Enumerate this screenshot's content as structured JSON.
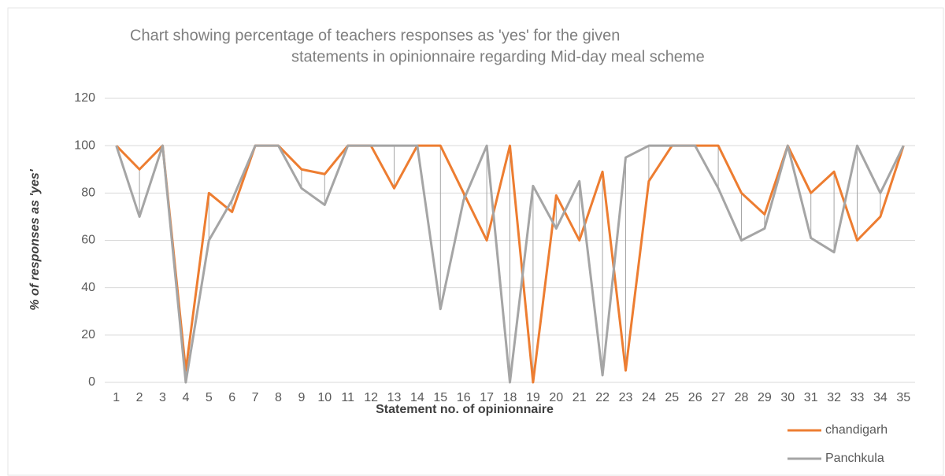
{
  "chart_data": {
    "type": "line",
    "title": [
      "Chart showing percentage of teachers responses as 'yes' for the given",
      "statements in opinionnaire regarding Mid-day meal scheme"
    ],
    "x_label": "Statement no. of opinionnaire",
    "y_label": "% of responses as 'yes'",
    "categories": [
      "1",
      "2",
      "3",
      "4",
      "5",
      "6",
      "7",
      "8",
      "9",
      "10",
      "11",
      "12",
      "13",
      "14",
      "15",
      "16",
      "17",
      "18",
      "19",
      "20",
      "21",
      "22",
      "23",
      "24",
      "25",
      "26",
      "27",
      "28",
      "29",
      "30",
      "31",
      "32",
      "33",
      "34",
      "35"
    ],
    "series": [
      {
        "name": "chandigarh",
        "color": "#ed7d31",
        "values": [
          100,
          90,
          100,
          5,
          80,
          72,
          100,
          100,
          90,
          88,
          100,
          100,
          82,
          100,
          100,
          80,
          60,
          100,
          0,
          79,
          60,
          89,
          5,
          85,
          100,
          100,
          100,
          80,
          71,
          100,
          80,
          89,
          60,
          70,
          100
        ]
      },
      {
        "name": "Panchkula",
        "color": "#a5a5a5",
        "values": [
          100,
          70,
          100,
          0,
          60,
          77,
          100,
          100,
          82,
          75,
          100,
          100,
          100,
          100,
          31,
          77,
          100,
          0,
          83,
          65,
          85,
          3,
          95,
          100,
          100,
          100,
          82,
          60,
          65,
          100,
          61,
          55,
          100,
          80,
          100
        ]
      }
    ],
    "high_low_lines": true,
    "ylim": [
      0,
      120
    ],
    "yticks": [
      0,
      20,
      40,
      60,
      80,
      100,
      120
    ],
    "grid": true,
    "legend": "bottom-right"
  }
}
